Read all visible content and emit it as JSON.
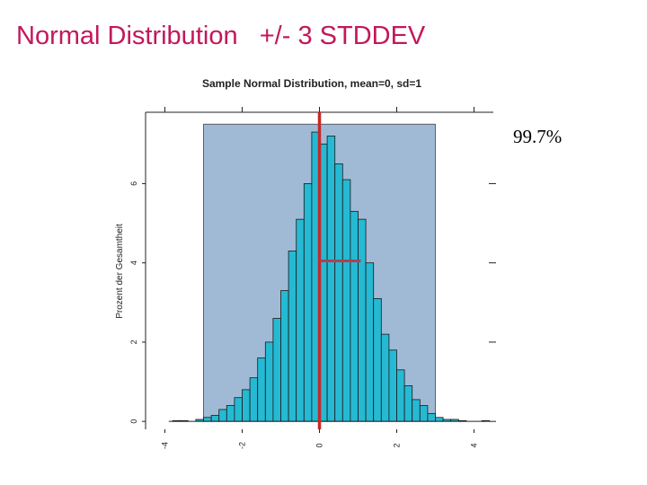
{
  "slide": {
    "title": "Normal Distribution   +/- 3 STDDEV",
    "coverage_label": "99.7%",
    "title_color": "#c2185b"
  },
  "chart_data": {
    "type": "bar",
    "title": "Sample Normal Distribution, mean=0, sd=1",
    "xlabel": "",
    "ylabel": "Prozent der Gesamtheit",
    "xlim": [
      -4.5,
      4.5
    ],
    "ylim": [
      -0.2,
      7.8
    ],
    "x_ticks": [
      -4,
      -2,
      0,
      2,
      4
    ],
    "x_tick_labels": [
      "-4",
      "-2",
      "0",
      "2",
      "4"
    ],
    "y_ticks": [
      0,
      2,
      4,
      6
    ],
    "y_tick_labels": [
      "0",
      "2",
      "4",
      "6"
    ],
    "bin_width": 0.2,
    "bins": [
      {
        "x0": -3.8,
        "value": 0.02
      },
      {
        "x0": -3.6,
        "value": 0.02
      },
      {
        "x0": -3.2,
        "value": 0.05
      },
      {
        "x0": -3.0,
        "value": 0.1
      },
      {
        "x0": -2.8,
        "value": 0.15
      },
      {
        "x0": -2.6,
        "value": 0.3
      },
      {
        "x0": -2.4,
        "value": 0.4
      },
      {
        "x0": -2.2,
        "value": 0.6
      },
      {
        "x0": -2.0,
        "value": 0.8
      },
      {
        "x0": -1.8,
        "value": 1.1
      },
      {
        "x0": -1.6,
        "value": 1.6
      },
      {
        "x0": -1.4,
        "value": 2.0
      },
      {
        "x0": -1.2,
        "value": 2.6
      },
      {
        "x0": -1.0,
        "value": 3.3
      },
      {
        "x0": -0.8,
        "value": 4.3
      },
      {
        "x0": -0.6,
        "value": 5.1
      },
      {
        "x0": -0.4,
        "value": 6.0
      },
      {
        "x0": -0.2,
        "value": 7.3
      },
      {
        "x0": 0.0,
        "value": 7.0
      },
      {
        "x0": 0.2,
        "value": 7.2
      },
      {
        "x0": 0.4,
        "value": 6.5
      },
      {
        "x0": 0.6,
        "value": 6.1
      },
      {
        "x0": 0.8,
        "value": 5.3
      },
      {
        "x0": 1.0,
        "value": 5.1
      },
      {
        "x0": 1.2,
        "value": 4.0
      },
      {
        "x0": 1.4,
        "value": 3.1
      },
      {
        "x0": 1.6,
        "value": 2.2
      },
      {
        "x0": 1.8,
        "value": 1.8
      },
      {
        "x0": 2.0,
        "value": 1.3
      },
      {
        "x0": 2.2,
        "value": 0.9
      },
      {
        "x0": 2.4,
        "value": 0.55
      },
      {
        "x0": 2.6,
        "value": 0.4
      },
      {
        "x0": 2.8,
        "value": 0.2
      },
      {
        "x0": 3.0,
        "value": 0.1
      },
      {
        "x0": 3.2,
        "value": 0.05
      },
      {
        "x0": 3.4,
        "value": 0.05
      },
      {
        "x0": 3.6,
        "value": 0.02
      },
      {
        "x0": 4.2,
        "value": 0.02
      }
    ],
    "shaded_region": {
      "x_from": -3,
      "x_to": 3,
      "color": "#a0bad6"
    },
    "mean_line": {
      "x": 0,
      "color": "#c62828"
    },
    "sd_marker": {
      "x_from": 0,
      "x_to": 1,
      "y": 4.05,
      "color": "#b04050"
    },
    "bar_color": "#26b9d3",
    "grid": false
  }
}
